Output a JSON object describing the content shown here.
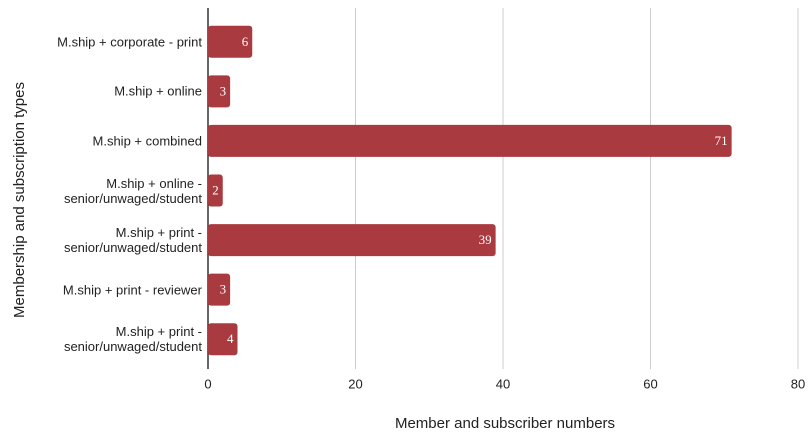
{
  "chart_data": {
    "type": "bar",
    "orientation": "horizontal",
    "x_label": "Member and subscriber numbers",
    "y_label": "Membership and subscription types",
    "categories": [
      "M.ship + corporate - print",
      "M.ship + online",
      "M.ship + combined",
      "M.ship + online - senior/unwaged/student",
      "M.ship + print - senior/unwaged/student",
      "M.ship + print - reviewer",
      "M.ship + print - senior/unwaged/student"
    ],
    "values": [
      6,
      3,
      71,
      2,
      39,
      3,
      4
    ],
    "color": "#a93a3f",
    "xlim": [
      0,
      80
    ],
    "xticks": [
      0,
      20,
      40,
      60,
      80
    ],
    "grid": true
  }
}
